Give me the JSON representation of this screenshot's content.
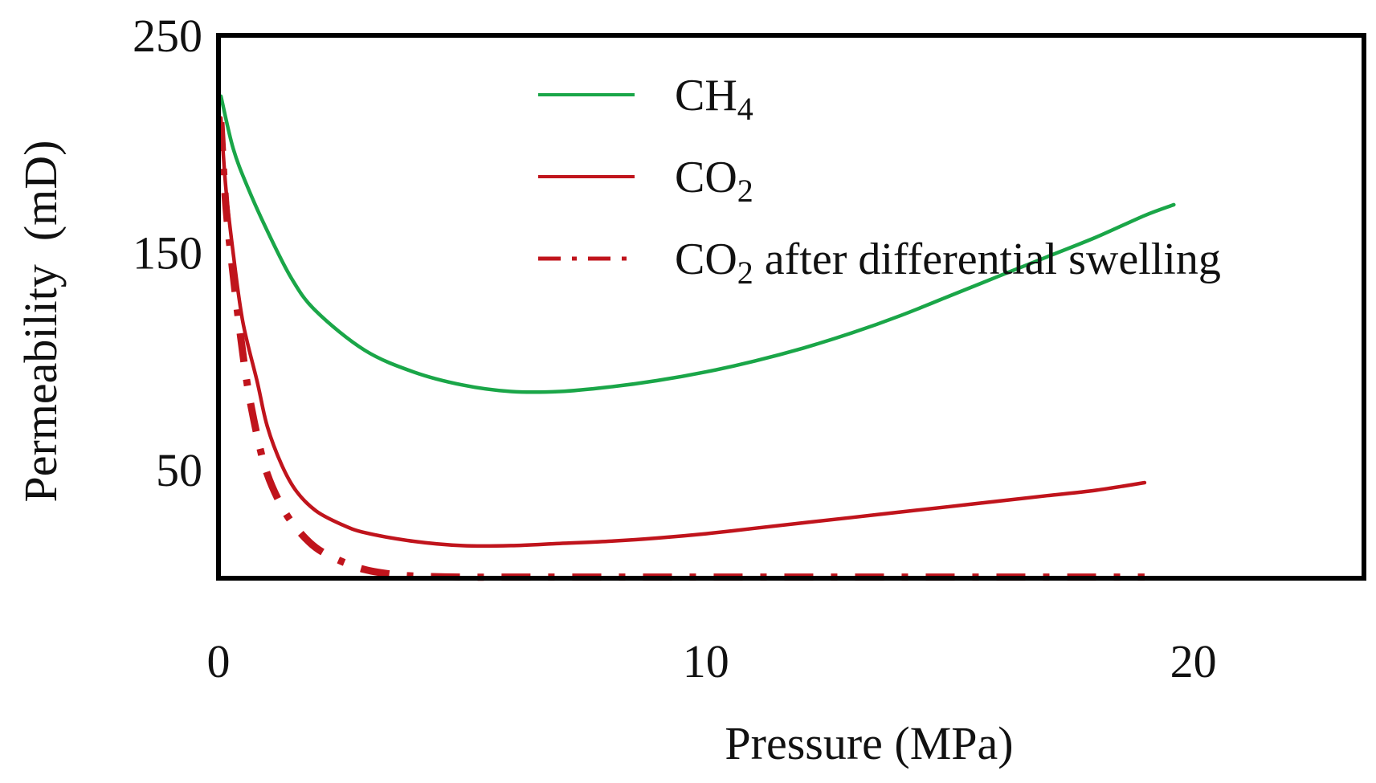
{
  "chart_data": {
    "type": "line",
    "title": "",
    "xlabel": "Pressure (MPa)",
    "ylabel": "Permeability  (mD)",
    "xlim": [
      0,
      23.5
    ],
    "ylim": [
      0,
      250
    ],
    "xticks": [
      0,
      10,
      20
    ],
    "xtick_labels": [
      "0",
      "10",
      "20"
    ],
    "yticks": [
      50,
      150,
      250
    ],
    "ytick_labels": [
      "50",
      "150",
      "250"
    ],
    "grid": false,
    "legend_position": "top-right",
    "series": [
      {
        "name": "CH4",
        "label_main": "CH",
        "label_sub": "4",
        "label_rest": "",
        "color": "#1aa648",
        "dash": "solid",
        "x": [
          0.05,
          0.3,
          0.6,
          1.0,
          1.5,
          2.0,
          3.0,
          4.0,
          5.0,
          6.0,
          7.0,
          8.0,
          9.0,
          10.0,
          11.0,
          12.0,
          13.0,
          14.0,
          15.0,
          16.0,
          17.0,
          18.0,
          19.0,
          19.6
        ],
        "y": [
          222,
          198,
          180,
          160,
          138,
          123,
          105,
          95,
          89,
          86,
          86,
          88,
          91,
          95,
          100,
          106,
          113,
          121,
          130,
          139,
          148,
          157,
          167,
          172
        ]
      },
      {
        "name": "CO2",
        "label_main": "CO",
        "label_sub": "2",
        "label_rest": "",
        "color": "#c0141c",
        "dash": "solid",
        "x": [
          0.05,
          0.15,
          0.3,
          0.5,
          0.8,
          1.0,
          1.3,
          1.6,
          2.0,
          2.5,
          3.0,
          4.0,
          5.0,
          6.0,
          7.0,
          8.0,
          9.0,
          10.0,
          11.0,
          12.0,
          13.0,
          14.0,
          15.0,
          16.0,
          17.0,
          18.0,
          19.0
        ],
        "y": [
          212,
          180,
          150,
          118,
          90,
          70,
          52,
          40,
          31,
          25,
          21,
          17,
          15,
          15,
          16,
          17,
          18.5,
          20.5,
          23,
          25.5,
          28,
          30.5,
          33,
          35.5,
          38,
          40.5,
          44
        ]
      },
      {
        "name": "CO2 after differential swelling",
        "label_main": "CO",
        "label_sub": "2",
        "label_rest": " after differential swelling",
        "color": "#c0141c",
        "dash": "dashdot",
        "x": [
          0.05,
          0.15,
          0.3,
          0.45,
          0.6,
          0.8,
          1.0,
          1.3,
          1.6,
          2.0,
          2.5,
          3.0,
          3.5,
          4.0,
          5.0,
          6.0,
          8.0,
          10.0,
          12.0,
          14.0,
          16.0,
          18.0,
          19.0
        ],
        "y": [
          210,
          172,
          140,
          112,
          88,
          65,
          48,
          33,
          23,
          14,
          8,
          4,
          2,
          1,
          0.5,
          0.5,
          0.5,
          0.5,
          0.5,
          0.5,
          0.5,
          0.5,
          0.5
        ]
      }
    ]
  }
}
